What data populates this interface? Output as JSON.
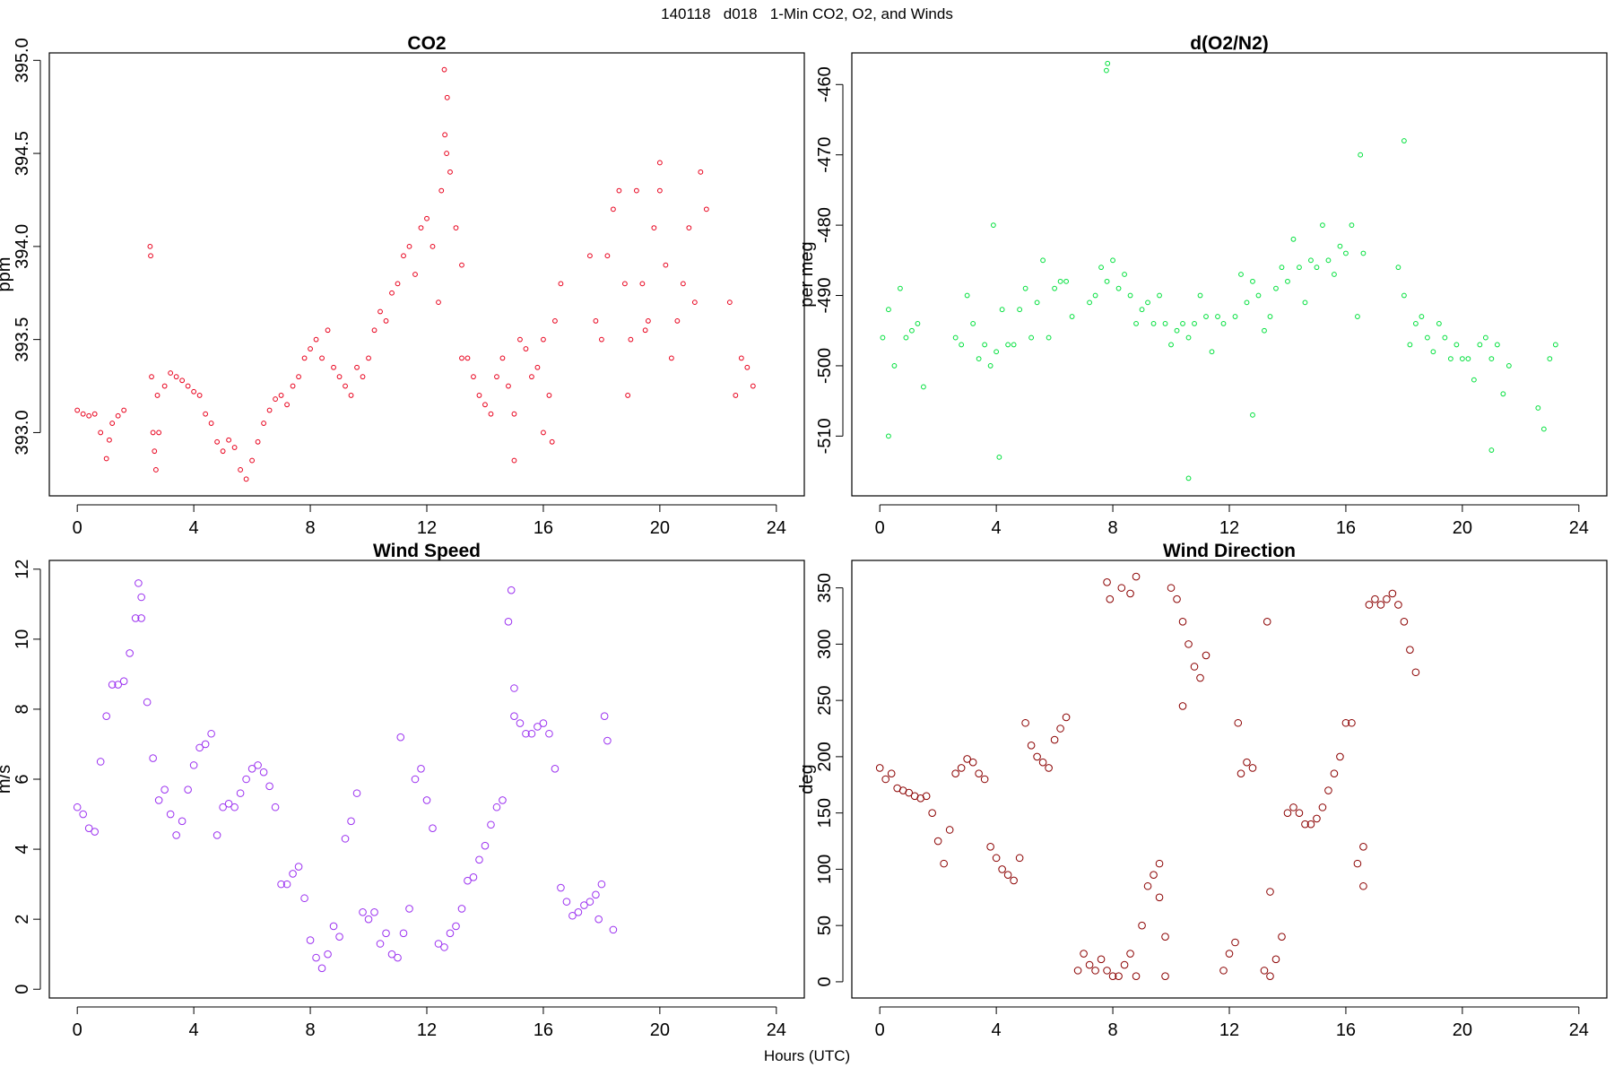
{
  "figure": {
    "title": "140118   d018   1-Min CO2, O2, and Winds",
    "xlabel": "Hours (UTC)"
  },
  "chart_data": [
    {
      "type": "scatter",
      "title": "CO2",
      "xlabel": "",
      "ylabel": "ppm",
      "xlim": [
        -0.96,
        24.96
      ],
      "ylim": [
        392.66,
        395.04
      ],
      "xticks": [
        "0",
        "4",
        "8",
        "12",
        "16",
        "20",
        "24"
      ],
      "yticks": [
        "393.0",
        "393.5",
        "394.0",
        "394.5",
        "395.0"
      ],
      "grid": false,
      "color": "#e8001c",
      "marker_size": 2.4,
      "x": [
        0.0,
        0.2,
        0.4,
        0.6,
        0.8,
        1.0,
        1.1,
        1.2,
        1.4,
        1.6,
        2.5,
        2.55,
        2.6,
        2.65,
        2.7,
        2.75,
        2.8,
        3.0,
        3.2,
        3.4,
        3.6,
        3.8,
        4.0,
        4.2,
        4.4,
        4.6,
        4.8,
        5.0,
        5.2,
        5.4,
        5.6,
        5.8,
        6.0,
        6.2,
        6.4,
        6.6,
        6.8,
        7.0,
        7.2,
        7.4,
        7.6,
        7.8,
        8.0,
        8.2,
        8.4,
        8.6,
        8.8,
        9.0,
        9.2,
        9.4,
        9.6,
        9.8,
        10.0,
        10.2,
        10.4,
        10.6,
        10.8,
        11.0,
        11.2,
        11.4,
        11.6,
        11.8,
        12.0,
        12.2,
        12.4,
        12.5,
        12.6,
        12.7,
        12.8,
        13.0,
        13.2,
        13.4,
        13.6,
        13.8,
        14.0,
        14.2,
        14.4,
        14.6,
        14.8,
        15.0,
        15.2,
        15.4,
        15.6,
        15.8,
        16.0,
        16.2,
        16.4,
        16.6,
        17.6,
        17.8,
        18.0,
        18.2,
        18.4,
        18.6,
        18.8,
        19.0,
        19.2,
        19.4,
        19.6,
        19.8,
        20.0,
        20.2,
        20.4,
        20.6,
        20.8,
        21.0,
        21.2,
        21.4,
        21.6,
        22.4,
        22.6,
        22.8,
        23.0,
        23.2,
        2.52,
        12.62,
        12.68,
        16.0,
        16.3,
        18.9,
        20.0,
        19.5,
        15.0,
        13.2
      ],
      "y": [
        393.12,
        393.1,
        393.09,
        393.1,
        393.0,
        392.86,
        392.96,
        393.05,
        393.09,
        393.12,
        394.0,
        393.3,
        393.0,
        392.9,
        392.8,
        393.2,
        393.0,
        393.25,
        393.32,
        393.3,
        393.28,
        393.25,
        393.22,
        393.2,
        393.1,
        393.05,
        392.95,
        392.9,
        392.96,
        392.92,
        392.8,
        392.75,
        392.85,
        392.95,
        393.05,
        393.12,
        393.18,
        393.2,
        393.15,
        393.25,
        393.3,
        393.4,
        393.45,
        393.5,
        393.4,
        393.55,
        393.35,
        393.3,
        393.25,
        393.2,
        393.35,
        393.3,
        393.4,
        393.55,
        393.65,
        393.6,
        393.75,
        393.8,
        393.95,
        394.0,
        393.85,
        394.1,
        394.15,
        394.0,
        393.7,
        394.3,
        394.95,
        394.8,
        394.4,
        394.1,
        393.9,
        393.4,
        393.3,
        393.2,
        393.15,
        393.1,
        393.3,
        393.4,
        393.25,
        393.1,
        393.5,
        393.45,
        393.3,
        393.35,
        393.5,
        393.2,
        393.6,
        393.8,
        393.95,
        393.6,
        393.5,
        393.95,
        394.2,
        394.3,
        393.8,
        393.5,
        394.3,
        393.8,
        393.6,
        394.1,
        394.3,
        393.9,
        393.4,
        393.6,
        393.8,
        394.1,
        393.7,
        394.4,
        394.2,
        393.7,
        393.2,
        393.4,
        393.35,
        393.25,
        393.95,
        394.6,
        394.5,
        393.0,
        392.95,
        393.2,
        394.45,
        393.55,
        392.85,
        393.4
      ]
    },
    {
      "type": "scatter",
      "title": "d(O2/N2)",
      "xlabel": "",
      "ylabel": "per meg",
      "xlim": [
        -0.96,
        24.96
      ],
      "ylim": [
        -518.5,
        -455.5
      ],
      "xticks": [
        "0",
        "4",
        "8",
        "12",
        "16",
        "20",
        "24"
      ],
      "yticks": [
        "-510",
        "-500",
        "-490",
        "-480",
        "-470",
        "-460"
      ],
      "grid": false,
      "color": "#00e03c",
      "marker_size": 2.4,
      "x": [
        0.1,
        0.3,
        0.5,
        0.7,
        0.9,
        1.1,
        1.3,
        1.5,
        2.6,
        2.8,
        3.0,
        3.2,
        3.4,
        3.6,
        3.8,
        4.0,
        4.2,
        4.4,
        4.6,
        4.8,
        5.0,
        5.2,
        5.4,
        5.6,
        5.8,
        6.0,
        6.2,
        6.4,
        6.6,
        7.2,
        7.4,
        7.6,
        7.8,
        8.0,
        8.2,
        8.4,
        8.6,
        8.8,
        9.0,
        9.2,
        9.4,
        9.6,
        9.8,
        10.0,
        10.2,
        10.4,
        10.6,
        10.8,
        11.0,
        11.2,
        11.4,
        11.6,
        11.8,
        12.2,
        12.4,
        12.6,
        12.8,
        13.0,
        13.2,
        13.4,
        13.6,
        13.8,
        14.0,
        14.2,
        14.4,
        14.6,
        14.8,
        15.0,
        15.2,
        15.4,
        15.6,
        15.8,
        16.0,
        16.2,
        16.4,
        16.6,
        17.8,
        18.0,
        18.2,
        18.4,
        18.6,
        18.8,
        19.0,
        19.2,
        19.4,
        19.6,
        19.8,
        20.0,
        20.2,
        20.4,
        20.6,
        20.8,
        21.0,
        21.2,
        21.4,
        21.6,
        22.6,
        22.8,
        23.0,
        23.2,
        7.78,
        7.82,
        10.6,
        4.1,
        18.0,
        16.5,
        0.3,
        12.8,
        3.9,
        21.0
      ],
      "y": [
        -496,
        -492,
        -500,
        -489,
        -496,
        -495,
        -494,
        -503,
        -496,
        -497,
        -490,
        -494,
        -499,
        -497,
        -500,
        -498,
        -492,
        -497,
        -497,
        -492,
        -489,
        -496,
        -491,
        -485,
        -496,
        -489,
        -488,
        -488,
        -493,
        -491,
        -490,
        -486,
        -488,
        -485,
        -489,
        -487,
        -490,
        -494,
        -492,
        -491,
        -494,
        -490,
        -494,
        -497,
        -495,
        -494,
        -496,
        -494,
        -490,
        -493,
        -498,
        -493,
        -494,
        -493,
        -487,
        -491,
        -488,
        -490,
        -495,
        -493,
        -489,
        -486,
        -488,
        -482,
        -486,
        -491,
        -485,
        -486,
        -480,
        -485,
        -487,
        -483,
        -484,
        -480,
        -493,
        -484,
        -486,
        -490,
        -497,
        -494,
        -493,
        -496,
        -498,
        -494,
        -496,
        -499,
        -497,
        -499,
        -499,
        -502,
        -497,
        -496,
        -499,
        -497,
        -504,
        -500,
        -506,
        -509,
        -499,
        -497,
        -458,
        -457,
        -516,
        -513,
        -468,
        -470,
        -510,
        -507,
        -480,
        -512
      ]
    },
    {
      "type": "scatter",
      "title": "Wind Speed",
      "xlabel": "",
      "ylabel": "m/s",
      "xlim": [
        -0.96,
        24.96
      ],
      "ylim": [
        -0.25,
        12.25
      ],
      "xticks": [
        "0",
        "4",
        "8",
        "12",
        "16",
        "20",
        "24"
      ],
      "yticks": [
        "0",
        "2",
        "4",
        "6",
        "8",
        "10",
        "12"
      ],
      "grid": false,
      "color": "#9b30f0",
      "marker_size": 3.8,
      "x": [
        0.0,
        0.2,
        0.4,
        0.6,
        0.8,
        1.0,
        1.2,
        1.4,
        1.6,
        1.8,
        2.0,
        2.2,
        2.4,
        2.6,
        2.8,
        3.0,
        3.2,
        3.4,
        3.6,
        3.8,
        4.0,
        4.2,
        4.4,
        4.6,
        4.8,
        5.0,
        5.2,
        5.4,
        5.6,
        5.8,
        6.0,
        6.2,
        6.4,
        6.6,
        6.8,
        7.0,
        7.2,
        7.4,
        7.6,
        7.8,
        8.0,
        8.2,
        8.4,
        8.6,
        8.8,
        9.0,
        9.2,
        9.4,
        9.6,
        9.8,
        10.0,
        10.2,
        10.4,
        10.6,
        10.8,
        11.0,
        11.2,
        11.4,
        11.6,
        11.8,
        12.0,
        12.2,
        12.4,
        12.6,
        12.8,
        13.0,
        13.2,
        13.4,
        13.6,
        13.8,
        14.0,
        14.2,
        14.4,
        14.6,
        14.8,
        15.0,
        15.2,
        15.4,
        15.6,
        15.8,
        16.0,
        16.2,
        16.4,
        16.6,
        16.8,
        17.0,
        17.2,
        17.4,
        17.6,
        17.8,
        18.0,
        18.2,
        18.4,
        2.1,
        2.2,
        14.9,
        15.0,
        17.9,
        18.1,
        11.1
      ],
      "y": [
        5.2,
        5.0,
        4.6,
        4.5,
        6.5,
        7.8,
        8.7,
        8.7,
        8.8,
        9.6,
        10.6,
        11.2,
        8.2,
        6.6,
        5.4,
        5.7,
        5.0,
        4.4,
        4.8,
        5.7,
        6.4,
        6.9,
        7.0,
        7.3,
        4.4,
        5.2,
        5.3,
        5.2,
        5.6,
        6.0,
        6.3,
        6.4,
        6.2,
        5.8,
        5.2,
        3.0,
        3.0,
        3.3,
        3.5,
        2.6,
        1.4,
        0.9,
        0.6,
        1.0,
        1.8,
        1.5,
        4.3,
        4.8,
        5.6,
        2.2,
        2.0,
        2.2,
        1.3,
        1.6,
        1.0,
        0.9,
        1.6,
        2.3,
        6.0,
        6.3,
        5.4,
        4.6,
        1.3,
        1.2,
        1.6,
        1.8,
        2.3,
        3.1,
        3.2,
        3.7,
        4.1,
        4.7,
        5.2,
        5.4,
        10.5,
        8.6,
        7.6,
        7.3,
        7.3,
        7.5,
        7.6,
        7.3,
        6.3,
        2.9,
        2.5,
        2.1,
        2.2,
        2.4,
        2.5,
        2.7,
        3.0,
        7.1,
        1.7,
        11.6,
        10.6,
        11.4,
        7.8,
        2.0,
        7.8,
        7.2
      ]
    },
    {
      "type": "scatter",
      "title": "Wind Direction",
      "xlabel": "",
      "ylabel": "deg",
      "xlim": [
        -0.96,
        24.96
      ],
      "ylim": [
        -14.4,
        374.4
      ],
      "xticks": [
        "0",
        "4",
        "8",
        "12",
        "16",
        "20",
        "24"
      ],
      "yticks": [
        "0",
        "50",
        "100",
        "150",
        "200",
        "250",
        "300",
        "350"
      ],
      "grid": false,
      "color": "#8b0000",
      "marker_size": 3.8,
      "x": [
        0.0,
        0.2,
        0.4,
        0.6,
        0.8,
        1.0,
        1.2,
        1.4,
        1.6,
        1.8,
        2.0,
        2.2,
        2.4,
        2.6,
        2.8,
        3.0,
        3.2,
        3.4,
        3.6,
        3.8,
        4.0,
        4.2,
        4.4,
        4.6,
        4.8,
        5.0,
        5.2,
        5.4,
        5.6,
        5.8,
        6.0,
        6.2,
        6.4,
        6.8,
        7.0,
        7.2,
        7.4,
        7.6,
        7.8,
        8.0,
        8.2,
        8.4,
        8.6,
        8.8,
        9.0,
        9.2,
        9.4,
        9.6,
        9.8,
        10.0,
        10.2,
        10.4,
        10.6,
        10.8,
        11.0,
        11.2,
        11.8,
        12.0,
        12.2,
        12.4,
        12.6,
        12.8,
        13.2,
        13.4,
        13.6,
        13.8,
        14.0,
        14.2,
        14.4,
        14.6,
        14.8,
        15.0,
        15.2,
        15.4,
        15.6,
        15.8,
        16.0,
        16.2,
        16.4,
        16.6,
        16.8,
        17.0,
        17.2,
        17.4,
        17.6,
        17.8,
        18.0,
        18.2,
        18.4,
        7.8,
        7.9,
        8.3,
        8.6,
        8.8,
        9.6,
        9.8,
        10.4,
        12.3,
        13.3,
        13.4,
        16.6
      ],
      "y": [
        190,
        180,
        185,
        172,
        170,
        168,
        165,
        163,
        165,
        150,
        125,
        105,
        135,
        185,
        190,
        198,
        195,
        185,
        180,
        120,
        110,
        100,
        95,
        90,
        110,
        230,
        210,
        200,
        195,
        190,
        215,
        225,
        235,
        10,
        25,
        15,
        10,
        20,
        10,
        5,
        5,
        15,
        25,
        5,
        50,
        85,
        95,
        75,
        5,
        350,
        340,
        320,
        300,
        280,
        270,
        290,
        10,
        25,
        35,
        185,
        195,
        190,
        10,
        5,
        20,
        40,
        150,
        155,
        150,
        140,
        140,
        145,
        155,
        170,
        185,
        200,
        230,
        230,
        105,
        85,
        335,
        340,
        335,
        340,
        345,
        335,
        320,
        295,
        275,
        355,
        340,
        350,
        345,
        360,
        105,
        40,
        245,
        230,
        320,
        80,
        120
      ]
    }
  ]
}
